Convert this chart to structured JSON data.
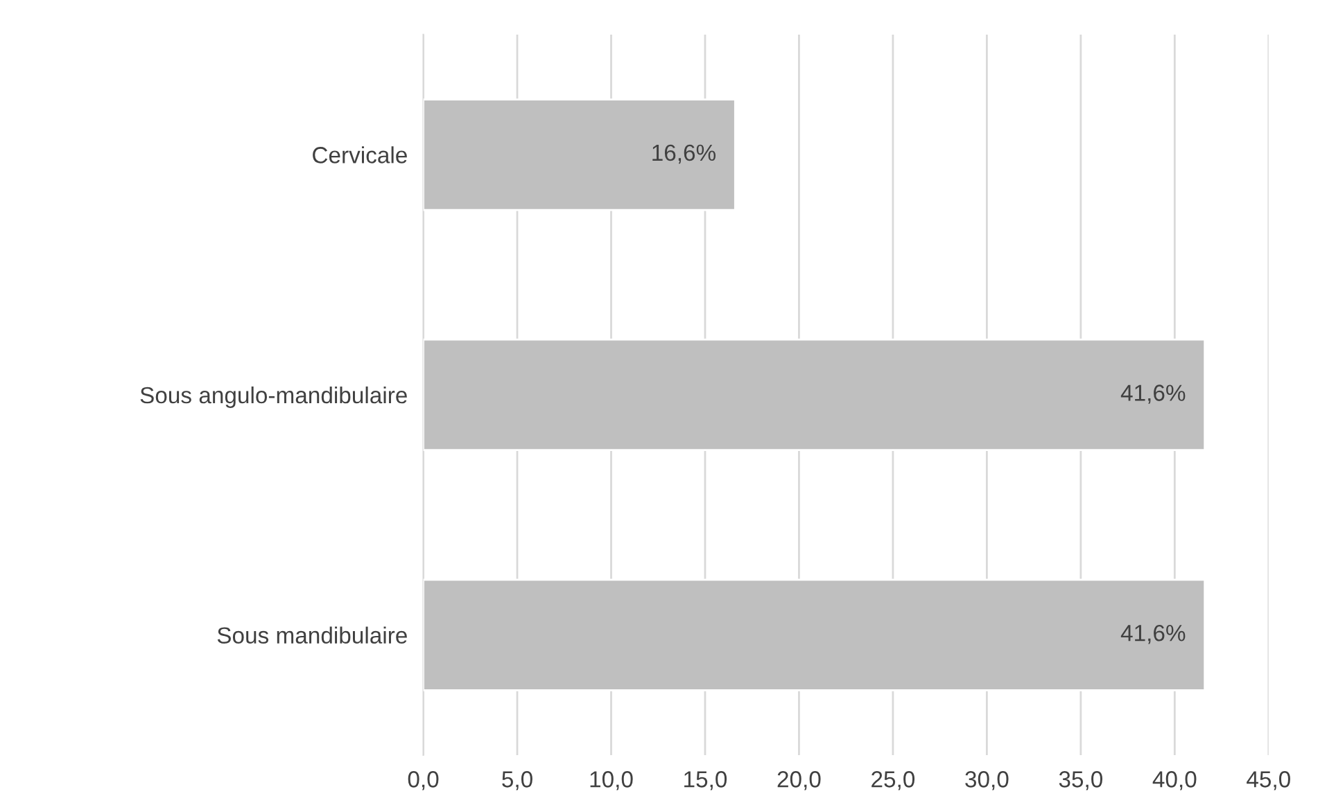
{
  "chart_data": {
    "type": "bar",
    "orientation": "horizontal",
    "categories": [
      "Cervicale",
      "Sous angulo-mandibulaire",
      "Sous mandibulaire"
    ],
    "values": [
      16.6,
      41.6,
      41.6
    ],
    "color": "#bfbfbf",
    "value_labels": [
      "16,6%",
      "41,6%",
      "41,6%"
    ],
    "xlim": [
      0,
      45
    ],
    "xticks": [
      {
        "value": 0,
        "label": "0,0"
      },
      {
        "value": 5,
        "label": "5,0"
      },
      {
        "value": 10,
        "label": "10,0"
      },
      {
        "value": 15,
        "label": "15,0"
      },
      {
        "value": 20,
        "label": "20,0"
      },
      {
        "value": 25,
        "label": "25,0"
      },
      {
        "value": 30,
        "label": "30,0"
      },
      {
        "value": 35,
        "label": "35,0"
      },
      {
        "value": 40,
        "label": "40,0"
      },
      {
        "value": 45,
        "label": "45,0"
      }
    ],
    "grid": "x"
  }
}
